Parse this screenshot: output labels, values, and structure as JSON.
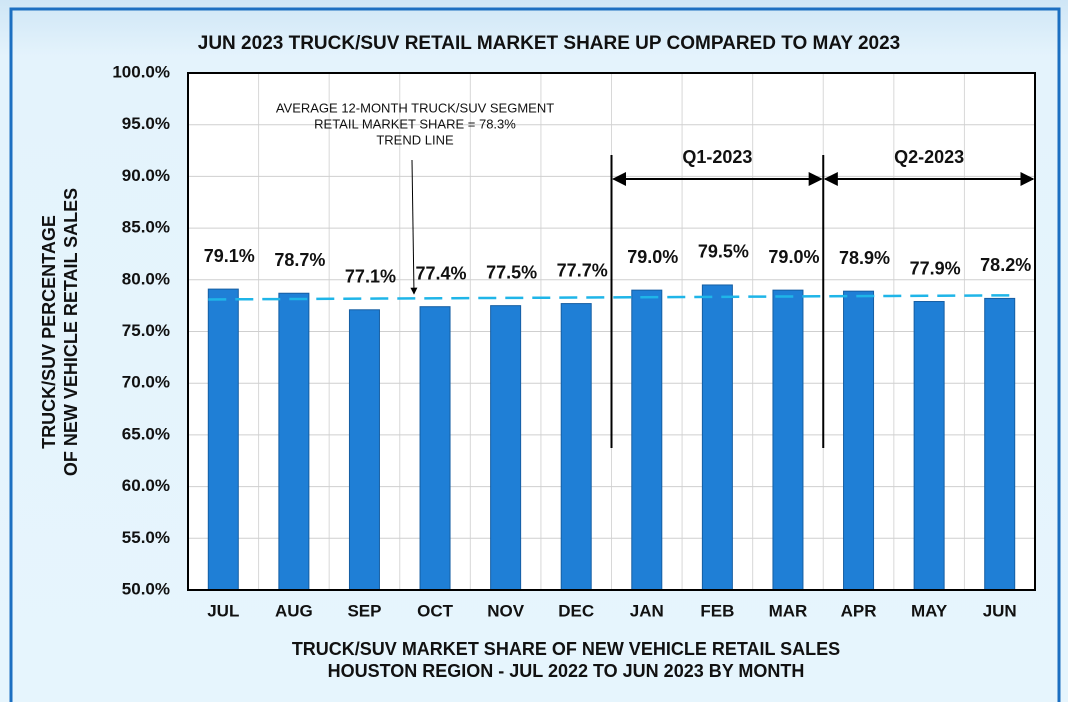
{
  "chart_data": {
    "type": "bar",
    "title": "JUN 2023 TRUCK/SUV RETAIL MARKET SHARE UP COMPARED TO MAY 2023",
    "y_label": [
      "TRUCK/SUV PERCENTAGE",
      "OF NEW VEHICLE RETAIL SALES"
    ],
    "x_label": [
      "TRUCK/SUV MARKET SHARE OF NEW VEHICLE RETAIL SALES",
      "HOUSTON REGION - JUL 2022 TO JUN 2023 BY MONTH"
    ],
    "annotation": [
      "AVERAGE 12-MONTH TRUCK/SUV SEGMENT",
      "RETAIL MARKET SHARE = 78.3%",
      "TREND LINE"
    ],
    "quarters": [
      "Q1-2023",
      "Q2-2023"
    ],
    "categories": [
      "JUL",
      "AUG",
      "SEP",
      "OCT",
      "NOV",
      "DEC",
      "JAN",
      "FEB",
      "MAR",
      "APR",
      "MAY",
      "JUN"
    ],
    "values": [
      79.1,
      78.7,
      77.1,
      77.4,
      77.5,
      77.7,
      79.0,
      79.5,
      79.0,
      78.9,
      77.9,
      78.2
    ],
    "value_labels": [
      "79.1%",
      "78.7%",
      "77.1%",
      "77.4%",
      "77.5%",
      "77.7%",
      "79.0%",
      "79.5%",
      "79.0%",
      "78.9%",
      "77.9%",
      "78.2%"
    ],
    "color": "#1f7fd6",
    "trend_line": {
      "values": [
        78.1,
        78.5
      ],
      "color": "#1fb5e8"
    },
    "ylim": [
      50,
      100
    ],
    "yticks": [
      {
        "value": 50,
        "label": "50.0%"
      },
      {
        "value": 55,
        "label": "55.0%"
      },
      {
        "value": 60,
        "label": "60.0%"
      },
      {
        "value": 65,
        "label": "65.0%"
      },
      {
        "value": 70,
        "label": "70.0%"
      },
      {
        "value": 75,
        "label": "75.0%"
      },
      {
        "value": 80,
        "label": "80.0%"
      },
      {
        "value": 85,
        "label": "85.0%"
      },
      {
        "value": 90,
        "label": "90.0%"
      },
      {
        "value": 95,
        "label": "95.0%"
      },
      {
        "value": 100,
        "label": "100.0%"
      }
    ],
    "grid": true
  }
}
